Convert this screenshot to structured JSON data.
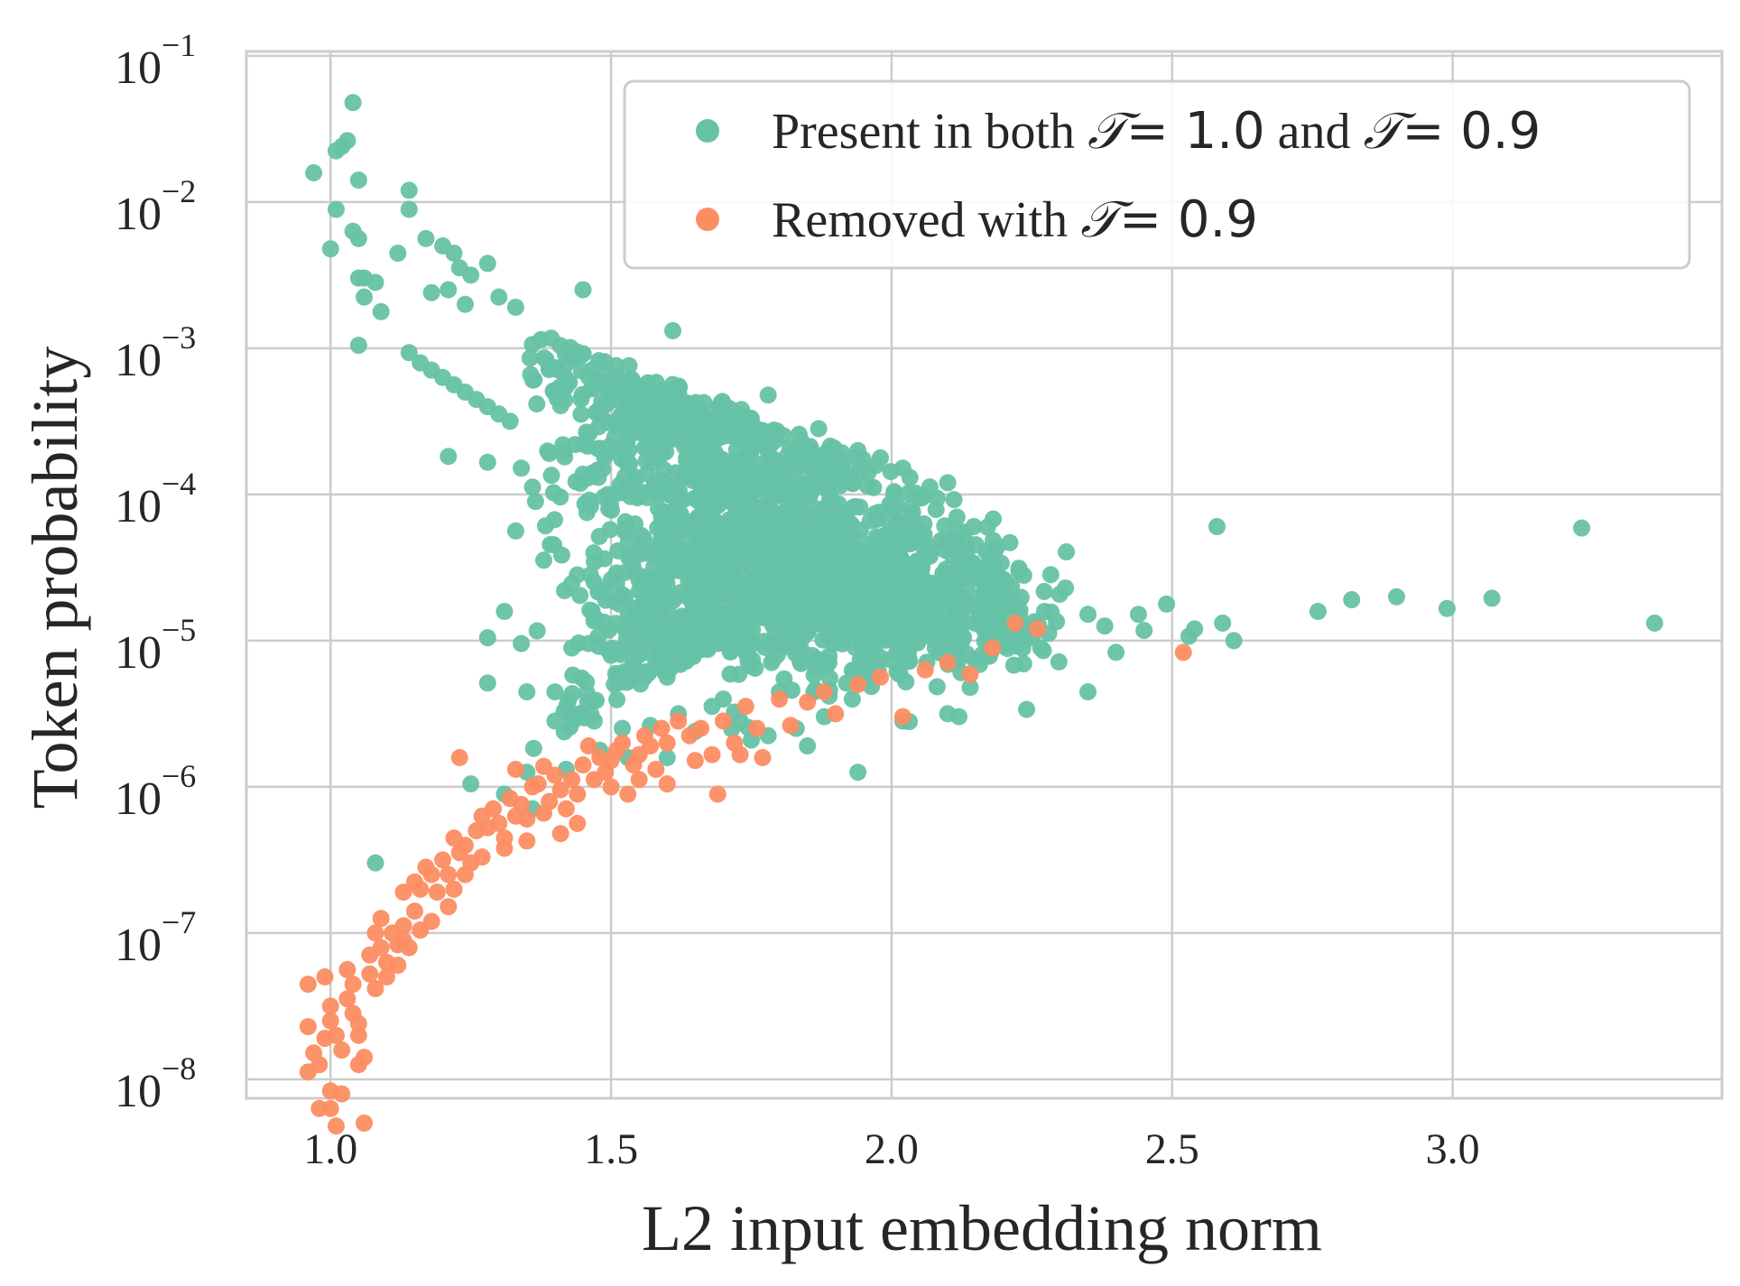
{
  "chart_data": {
    "type": "scatter",
    "title": "",
    "xlabel": "L2 input embedding norm",
    "ylabel": "Token probability",
    "x_scale": "linear",
    "y_scale": "log",
    "xlim": [
      0.85,
      3.48
    ],
    "ylim_log10": [
      -8.13,
      -0.97
    ],
    "x_ticks": [
      {
        "value": 1.0,
        "label": "1.0"
      },
      {
        "value": 1.5,
        "label": "1.5"
      },
      {
        "value": 2.0,
        "label": "2.0"
      },
      {
        "value": 2.5,
        "label": "2.5"
      },
      {
        "value": 3.0,
        "label": "3.0"
      }
    ],
    "y_ticks": [
      {
        "exp": -1,
        "base": "10",
        "sup": "−1"
      },
      {
        "exp": -2,
        "base": "10",
        "sup": "−2"
      },
      {
        "exp": -3,
        "base": "10",
        "sup": "−3"
      },
      {
        "exp": -4,
        "base": "10",
        "sup": "−4"
      },
      {
        "exp": -5,
        "base": "10",
        "sup": "−5"
      },
      {
        "exp": -6,
        "base": "10",
        "sup": "−6"
      },
      {
        "exp": -7,
        "base": "10",
        "sup": "−7"
      },
      {
        "exp": -8,
        "base": "10",
        "sup": "−8"
      }
    ],
    "grid": true,
    "legend_position": "top-right",
    "series": [
      {
        "name": "Present in both T = 1.0 and T = 0.9",
        "legend_parts": [
          "Present in both ",
          "𝒯",
          "= 1.0",
          " and ",
          "𝒯",
          "= 0.9"
        ],
        "color": "#66c2a5",
        "points": [
          [
            1.04,
            -1.32
          ],
          [
            0.97,
            -1.8
          ],
          [
            1.01,
            -1.65
          ],
          [
            1.02,
            -1.62
          ],
          [
            1.03,
            -1.58
          ],
          [
            1.05,
            -1.85
          ],
          [
            1.14,
            -1.92
          ],
          [
            1.14,
            -2.05
          ],
          [
            1.01,
            -2.05
          ],
          [
            1.0,
            -2.32
          ],
          [
            1.04,
            -2.2
          ],
          [
            1.05,
            -2.25
          ],
          [
            1.05,
            -2.52
          ],
          [
            1.06,
            -2.52
          ],
          [
            1.08,
            -2.55
          ],
          [
            1.06,
            -2.65
          ],
          [
            1.09,
            -2.75
          ],
          [
            1.05,
            -2.98
          ],
          [
            1.12,
            -2.35
          ],
          [
            1.17,
            -2.25
          ],
          [
            1.2,
            -2.3
          ],
          [
            1.22,
            -2.35
          ],
          [
            1.23,
            -2.45
          ],
          [
            1.25,
            -2.5
          ],
          [
            1.28,
            -2.42
          ],
          [
            1.18,
            -2.62
          ],
          [
            1.21,
            -2.6
          ],
          [
            1.24,
            -2.7
          ],
          [
            1.3,
            -2.65
          ],
          [
            1.33,
            -2.72
          ],
          [
            1.45,
            -2.6
          ],
          [
            1.61,
            -2.88
          ],
          [
            1.14,
            -3.03
          ],
          [
            1.16,
            -3.1
          ],
          [
            1.18,
            -3.15
          ],
          [
            1.2,
            -3.2
          ],
          [
            1.22,
            -3.25
          ],
          [
            1.24,
            -3.3
          ],
          [
            1.26,
            -3.35
          ],
          [
            1.28,
            -3.4
          ],
          [
            1.3,
            -3.45
          ],
          [
            1.32,
            -3.5
          ],
          [
            1.21,
            -3.74
          ],
          [
            1.28,
            -3.78
          ],
          [
            1.34,
            -3.82
          ],
          [
            1.36,
            -3.95
          ],
          [
            1.39,
            -3.72
          ],
          [
            1.78,
            -3.32
          ],
          [
            1.87,
            -3.55
          ],
          [
            1.94,
            -3.7
          ],
          [
            1.98,
            -3.75
          ],
          [
            2.02,
            -3.82
          ],
          [
            2.1,
            -3.92
          ],
          [
            1.33,
            -4.25
          ],
          [
            1.38,
            -4.45
          ],
          [
            1.44,
            -4.55
          ],
          [
            1.47,
            -4.6
          ],
          [
            1.31,
            -4.8
          ],
          [
            1.28,
            -4.98
          ],
          [
            1.34,
            -5.02
          ],
          [
            1.35,
            -5.35
          ],
          [
            1.4,
            -5.35
          ],
          [
            1.28,
            -5.29
          ],
          [
            1.43,
            -5.05
          ],
          [
            1.46,
            -5.02
          ],
          [
            1.5,
            -5.1
          ],
          [
            1.55,
            -5.22
          ],
          [
            1.6,
            -5.25
          ],
          [
            1.47,
            -5.55
          ],
          [
            1.52,
            -5.6
          ],
          [
            1.57,
            -5.58
          ],
          [
            1.62,
            -5.5
          ],
          [
            1.68,
            -5.45
          ],
          [
            1.73,
            -5.55
          ],
          [
            1.78,
            -5.65
          ],
          [
            1.83,
            -5.6
          ],
          [
            1.88,
            -5.52
          ],
          [
            1.93,
            -5.4
          ],
          [
            2.02,
            -5.55
          ],
          [
            2.1,
            -5.5
          ],
          [
            2.14,
            -5.32
          ],
          [
            2.2,
            -5.02
          ],
          [
            2.28,
            -4.95
          ],
          [
            2.31,
            -4.64
          ],
          [
            2.35,
            -4.82
          ],
          [
            2.38,
            -4.9
          ],
          [
            2.45,
            -4.93
          ],
          [
            2.44,
            -4.82
          ],
          [
            2.49,
            -4.75
          ],
          [
            2.53,
            -4.97
          ],
          [
            2.54,
            -4.92
          ],
          [
            2.58,
            -4.22
          ],
          [
            2.59,
            -4.88
          ],
          [
            2.61,
            -5.0
          ],
          [
            2.76,
            -4.8
          ],
          [
            2.82,
            -4.72
          ],
          [
            2.9,
            -4.7
          ],
          [
            2.99,
            -4.78
          ],
          [
            3.07,
            -4.71
          ],
          [
            3.23,
            -4.23
          ],
          [
            3.36,
            -4.88
          ],
          [
            2.4,
            -5.08
          ],
          [
            2.35,
            -5.35
          ],
          [
            1.94,
            -5.9
          ],
          [
            2.12,
            -5.52
          ],
          [
            1.4,
            -5.55
          ],
          [
            1.48,
            -5.75
          ],
          [
            1.53,
            -5.8
          ],
          [
            1.42,
            -5.88
          ],
          [
            1.35,
            -5.9
          ],
          [
            1.31,
            -6.05
          ],
          [
            1.36,
            -6.15
          ],
          [
            1.08,
            -6.52
          ],
          [
            1.25,
            -5.98
          ],
          [
            1.6,
            -5.8
          ],
          [
            1.75,
            -5.68
          ],
          [
            1.85,
            -5.72
          ],
          [
            1.65,
            -5.62
          ],
          [
            1.7,
            -5.4
          ],
          [
            1.8,
            -5.35
          ]
        ],
        "cloud": {
          "x_range": [
            1.35,
            2.35
          ],
          "description_clusters": [
            {
              "x": 1.62,
              "y": -3.5,
              "sx": 0.1,
              "sy": 0.25,
              "n": 260
            },
            {
              "x": 1.75,
              "y": -4.0,
              "sx": 0.14,
              "sy": 0.3,
              "n": 420
            },
            {
              "x": 1.85,
              "y": -4.55,
              "sx": 0.16,
              "sy": 0.3,
              "n": 520
            },
            {
              "x": 1.95,
              "y": -4.75,
              "sx": 0.14,
              "sy": 0.25,
              "n": 320
            },
            {
              "x": 1.6,
              "y": -4.85,
              "sx": 0.08,
              "sy": 0.28,
              "n": 200
            },
            {
              "x": 1.38,
              "y": -3.15,
              "sx": 0.08,
              "sy": 0.2,
              "n": 90
            },
            {
              "x": 2.15,
              "y": -4.8,
              "sx": 0.08,
              "sy": 0.18,
              "n": 140
            },
            {
              "x": 1.55,
              "y": -5.7,
              "sx": 0.12,
              "sy": 0.1,
              "n": 60
            }
          ]
        }
      },
      {
        "name": "Removed with T = 0.9",
        "legend_parts": [
          "Removed with ",
          "𝒯",
          "= 0.9"
        ],
        "color": "#fc8d62",
        "points": [
          [
            0.96,
            -7.95
          ],
          [
            0.96,
            -7.35
          ],
          [
            0.96,
            -7.64
          ],
          [
            0.97,
            -7.82
          ],
          [
            0.98,
            -7.9
          ],
          [
            0.99,
            -7.3
          ],
          [
            1.0,
            -7.5
          ],
          [
            1.0,
            -7.6
          ],
          [
            1.01,
            -7.7
          ],
          [
            1.02,
            -7.8
          ],
          [
            0.99,
            -7.72
          ],
          [
            1.0,
            -8.08
          ],
          [
            1.0,
            -8.2
          ],
          [
            0.98,
            -8.2
          ],
          [
            1.01,
            -8.32
          ],
          [
            1.02,
            -8.1
          ],
          [
            1.03,
            -7.45
          ],
          [
            1.03,
            -7.25
          ],
          [
            1.04,
            -7.35
          ],
          [
            1.04,
            -7.55
          ],
          [
            1.05,
            -7.62
          ],
          [
            1.05,
            -7.7
          ],
          [
            1.05,
            -7.9
          ],
          [
            1.06,
            -7.85
          ],
          [
            1.06,
            -8.3
          ],
          [
            1.07,
            -7.15
          ],
          [
            1.07,
            -7.28
          ],
          [
            1.08,
            -7.38
          ],
          [
            1.08,
            -7.0
          ],
          [
            1.09,
            -6.9
          ],
          [
            1.09,
            -7.1
          ],
          [
            1.1,
            -7.2
          ],
          [
            1.1,
            -7.3
          ],
          [
            1.11,
            -7.0
          ],
          [
            1.12,
            -7.08
          ],
          [
            1.12,
            -7.22
          ],
          [
            1.13,
            -6.72
          ],
          [
            1.13,
            -6.95
          ],
          [
            1.14,
            -7.1
          ],
          [
            1.15,
            -6.85
          ],
          [
            1.15,
            -6.65
          ],
          [
            1.16,
            -6.7
          ],
          [
            1.17,
            -6.55
          ],
          [
            1.18,
            -6.6
          ],
          [
            1.19,
            -6.72
          ],
          [
            1.2,
            -6.5
          ],
          [
            1.21,
            -6.6
          ],
          [
            1.22,
            -6.7
          ],
          [
            1.22,
            -6.35
          ],
          [
            1.23,
            -6.45
          ],
          [
            1.24,
            -6.4
          ],
          [
            1.25,
            -6.52
          ],
          [
            1.23,
            -5.8
          ],
          [
            1.26,
            -6.3
          ],
          [
            1.27,
            -6.2
          ],
          [
            1.28,
            -6.28
          ],
          [
            1.29,
            -6.15
          ],
          [
            1.3,
            -6.25
          ],
          [
            1.31,
            -6.35
          ],
          [
            1.32,
            -6.08
          ],
          [
            1.33,
            -6.2
          ],
          [
            1.33,
            -5.88
          ],
          [
            1.34,
            -6.12
          ],
          [
            1.35,
            -6.22
          ],
          [
            1.35,
            -6.37
          ],
          [
            1.36,
            -6.0
          ],
          [
            1.37,
            -5.98
          ],
          [
            1.38,
            -5.86
          ],
          [
            1.39,
            -6.1
          ],
          [
            1.4,
            -5.92
          ],
          [
            1.41,
            -6.02
          ],
          [
            1.42,
            -6.15
          ],
          [
            1.43,
            -5.95
          ],
          [
            1.44,
            -6.05
          ],
          [
            1.45,
            -5.85
          ],
          [
            1.46,
            -5.72
          ],
          [
            1.47,
            -5.95
          ],
          [
            1.48,
            -5.8
          ],
          [
            1.49,
            -5.9
          ],
          [
            1.5,
            -5.82
          ],
          [
            1.51,
            -5.75
          ],
          [
            1.52,
            -5.7
          ],
          [
            1.53,
            -6.05
          ],
          [
            1.54,
            -5.85
          ],
          [
            1.55,
            -5.78
          ],
          [
            1.56,
            -5.65
          ],
          [
            1.57,
            -5.72
          ],
          [
            1.58,
            -5.88
          ],
          [
            1.59,
            -5.6
          ],
          [
            1.6,
            -5.7
          ],
          [
            1.62,
            -5.55
          ],
          [
            1.64,
            -5.65
          ],
          [
            1.66,
            -5.6
          ],
          [
            1.68,
            -5.78
          ],
          [
            1.69,
            -6.05
          ],
          [
            1.7,
            -5.55
          ],
          [
            1.72,
            -5.7
          ],
          [
            1.74,
            -5.45
          ],
          [
            1.76,
            -5.6
          ],
          [
            1.77,
            -5.8
          ],
          [
            1.8,
            -5.4
          ],
          [
            1.82,
            -5.58
          ],
          [
            1.85,
            -5.42
          ],
          [
            1.88,
            -5.35
          ],
          [
            1.9,
            -5.5
          ],
          [
            1.94,
            -5.3
          ],
          [
            1.98,
            -5.25
          ],
          [
            2.02,
            -5.52
          ],
          [
            2.06,
            -5.2
          ],
          [
            2.1,
            -5.15
          ],
          [
            2.14,
            -5.23
          ],
          [
            2.18,
            -5.05
          ],
          [
            2.22,
            -4.88
          ],
          [
            2.26,
            -4.92
          ],
          [
            2.52,
            -5.08
          ],
          [
            1.65,
            -5.82
          ],
          [
            1.73,
            -5.78
          ],
          [
            1.6,
            -5.98
          ],
          [
            1.55,
            -5.95
          ],
          [
            1.5,
            -6.0
          ],
          [
            1.44,
            -6.25
          ],
          [
            1.41,
            -6.32
          ],
          [
            1.38,
            -6.18
          ],
          [
            1.31,
            -6.42
          ],
          [
            1.27,
            -6.48
          ],
          [
            1.24,
            -6.6
          ],
          [
            1.21,
            -6.82
          ],
          [
            1.18,
            -6.92
          ],
          [
            1.16,
            -6.98
          ],
          [
            1.13,
            -7.05
          ]
        ]
      }
    ]
  }
}
